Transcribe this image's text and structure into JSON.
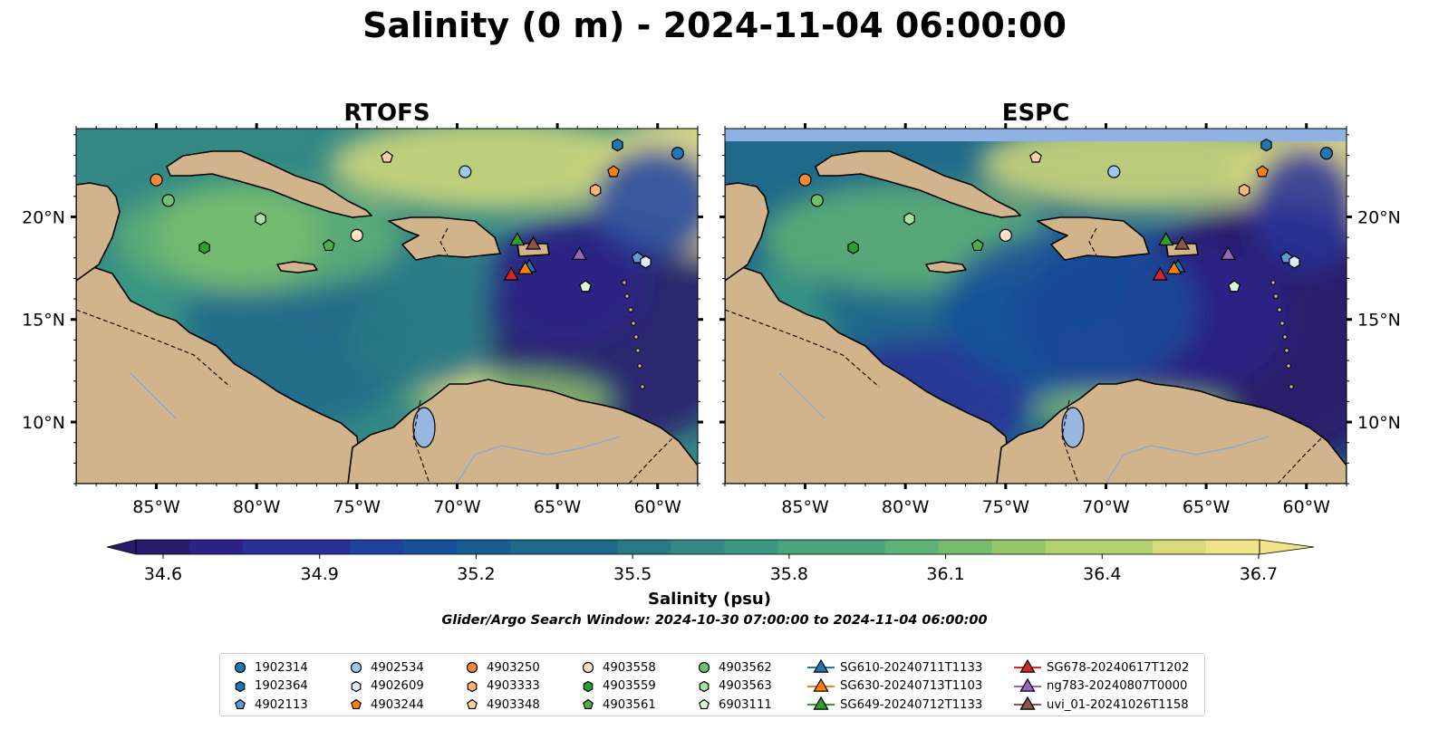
{
  "figure": {
    "title": "Salinity (0 m) - 2024-11-04 06:00:00",
    "subtitle": "Glider/Argo Search Window: 2024-10-30 07:00:00 to 2024-11-04 06:00:00"
  },
  "colors": {
    "land": "#d2b48c",
    "lakes": "#97b6e1",
    "rivers": "#8ea8c8",
    "palette": [
      "#2a1b6b",
      "#2c2288",
      "#283198",
      "#1f42a0",
      "#184f9a",
      "#175d92",
      "#1f6a8b",
      "#287a86",
      "#348985",
      "#3b9782",
      "#4aa47d",
      "#60b176",
      "#78bd6e",
      "#95c66b",
      "#b5d070",
      "#d7dc79",
      "#f1e488"
    ]
  },
  "chart_data": {
    "type": "heatmap",
    "panels": [
      {
        "title": "RTOFS",
        "model": "rtofs"
      },
      {
        "title": "ESPC",
        "model": "espc"
      }
    ],
    "x_ticks": [
      {
        "value": -85,
        "label": "85°W"
      },
      {
        "value": -80,
        "label": "80°W"
      },
      {
        "value": -75,
        "label": "75°W"
      },
      {
        "value": -70,
        "label": "70°W"
      },
      {
        "value": -65,
        "label": "65°W"
      },
      {
        "value": -60,
        "label": "60°W"
      }
    ],
    "y_ticks": [
      {
        "value": 10,
        "label": "10°N"
      },
      {
        "value": 15,
        "label": "15°N"
      },
      {
        "value": 20,
        "label": "20°N"
      }
    ],
    "xlim": [
      -89,
      -58
    ],
    "ylim": [
      7,
      24.3
    ],
    "colorbar": {
      "label": "Salinity (psu)",
      "min": 34.6,
      "max": 36.7,
      "extend": "both",
      "ticks": [
        "34.6",
        "34.9",
        "35.2",
        "35.5",
        "35.8",
        "36.1",
        "36.4",
        "36.7"
      ]
    },
    "observations": [
      {
        "id": "1902314",
        "kind": "argo",
        "marker": "circle",
        "color": "#1f77b4",
        "lon": -59.0,
        "lat": 23.1
      },
      {
        "id": "1902364",
        "kind": "argo",
        "marker": "hexagon",
        "color": "#1f77b4",
        "lon": -62.0,
        "lat": 23.5
      },
      {
        "id": "4902113",
        "kind": "argo",
        "marker": "pentagon",
        "color": "#5a9bd5",
        "lon": -61.0,
        "lat": 18.0
      },
      {
        "id": "4902534",
        "kind": "argo",
        "marker": "circle",
        "color": "#9ec9ee",
        "lon": -69.6,
        "lat": 22.2
      },
      {
        "id": "4902609",
        "kind": "argo",
        "marker": "hexagon",
        "color": "#deebf7",
        "lon": -60.6,
        "lat": 17.8
      },
      {
        "id": "4903244",
        "kind": "argo",
        "marker": "pentagon",
        "color": "#ff7f0e",
        "lon": -62.2,
        "lat": 22.2
      },
      {
        "id": "4903250",
        "kind": "argo",
        "marker": "circle",
        "color": "#f58b3a",
        "lon": -85.0,
        "lat": 21.8
      },
      {
        "id": "4903333",
        "kind": "argo",
        "marker": "hexagon",
        "color": "#fdb678",
        "lon": -63.1,
        "lat": 21.3
      },
      {
        "id": "4903348",
        "kind": "argo",
        "marker": "pentagon",
        "color": "#fdd0a2",
        "lon": -73.5,
        "lat": 22.9
      },
      {
        "id": "4903558",
        "kind": "argo",
        "marker": "circle",
        "color": "#fde0c5",
        "lon": -75.0,
        "lat": 19.1
      },
      {
        "id": "4903559",
        "kind": "argo",
        "marker": "hexagon",
        "color": "#2ca02c",
        "lon": -82.6,
        "lat": 18.5
      },
      {
        "id": "4903561",
        "kind": "argo",
        "marker": "pentagon",
        "color": "#4daf4a",
        "lon": -76.4,
        "lat": 18.6
      },
      {
        "id": "4903562",
        "kind": "argo",
        "marker": "circle",
        "color": "#6cc36c",
        "lon": -84.4,
        "lat": 20.8
      },
      {
        "id": "4903563",
        "kind": "argo",
        "marker": "hexagon",
        "color": "#a6e3a0",
        "lon": -79.8,
        "lat": 19.9
      },
      {
        "id": "6903111",
        "kind": "argo",
        "marker": "pentagon",
        "color": "#d9f7d3",
        "lon": -63.6,
        "lat": 16.6
      },
      {
        "id": "SG610-20240711T1133",
        "kind": "glider",
        "marker": "triangle",
        "color": "#1f77b4",
        "lon": -66.4,
        "lat": 17.6
      },
      {
        "id": "SG630-20240713T1103",
        "kind": "glider",
        "marker": "triangle",
        "color": "#ff7f0e",
        "lon": -66.6,
        "lat": 17.5
      },
      {
        "id": "SG649-20240712T1133",
        "kind": "glider",
        "marker": "triangle",
        "color": "#2ca02c",
        "lon": -67.0,
        "lat": 18.9
      },
      {
        "id": "SG678-20240617T1202",
        "kind": "glider",
        "marker": "triangle",
        "color": "#d62728",
        "lon": -67.3,
        "lat": 17.2
      },
      {
        "id": "ng783-20240807T0000",
        "kind": "glider",
        "marker": "triangle",
        "color": "#9467bd",
        "lon": -63.9,
        "lat": 18.2
      },
      {
        "id": "uvi_01-20241026T1158",
        "kind": "glider",
        "marker": "triangle",
        "color": "#8c564b",
        "lon": -66.2,
        "lat": 18.7
      }
    ]
  }
}
